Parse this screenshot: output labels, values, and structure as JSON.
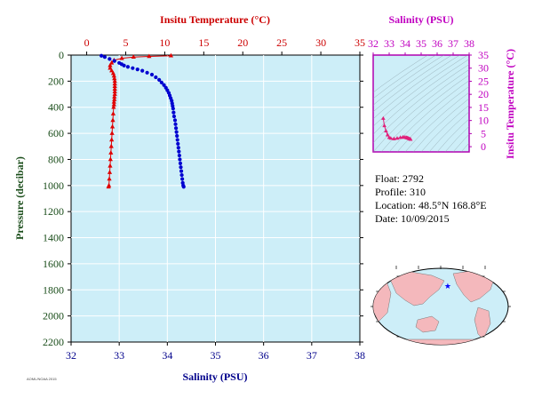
{
  "chart_data": [
    {
      "type": "scatter",
      "top_axis_label": "Insitu Temperature (°C)",
      "top_ticks": [
        0,
        5,
        10,
        15,
        20,
        25,
        30,
        35
      ],
      "top_range": [
        -2,
        35
      ],
      "bottom_axis_label": "Salinity (PSU)",
      "bottom_ticks": [
        32,
        33,
        34,
        35,
        36,
        37,
        38
      ],
      "bottom_range": [
        32,
        38
      ],
      "y_axis_label": "Pressure (decibar)",
      "y_ticks": [
        0,
        200,
        400,
        600,
        800,
        1000,
        1200,
        1400,
        1600,
        1800,
        2000,
        2200
      ],
      "y_range": [
        0,
        2200
      ],
      "y_inverted": true,
      "series": [
        {
          "axis": "temperature",
          "color": "#e00000",
          "marker": "triangle",
          "points": [
            [
              10.8,
              5
            ],
            [
              8,
              10
            ],
            [
              6,
              15
            ],
            [
              4.5,
              25
            ],
            [
              3.5,
              40
            ],
            [
              3.2,
              60
            ],
            [
              3.0,
              80
            ],
            [
              3.0,
              100
            ],
            [
              3.2,
              120
            ],
            [
              3.4,
              140
            ],
            [
              3.5,
              160
            ],
            [
              3.55,
              180
            ],
            [
              3.6,
              200
            ],
            [
              3.6,
              220
            ],
            [
              3.6,
              240
            ],
            [
              3.6,
              260
            ],
            [
              3.6,
              280
            ],
            [
              3.6,
              300
            ],
            [
              3.55,
              320
            ],
            [
              3.55,
              340
            ],
            [
              3.5,
              360
            ],
            [
              3.5,
              380
            ],
            [
              3.45,
              400
            ],
            [
              3.4,
              450
            ],
            [
              3.35,
              500
            ],
            [
              3.3,
              550
            ],
            [
              3.25,
              600
            ],
            [
              3.2,
              650
            ],
            [
              3.15,
              700
            ],
            [
              3.1,
              750
            ],
            [
              3.05,
              800
            ],
            [
              3.0,
              850
            ],
            [
              2.95,
              900
            ],
            [
              2.9,
              950
            ],
            [
              2.85,
              1000
            ],
            [
              2.8,
              1010
            ]
          ]
        },
        {
          "axis": "salinity",
          "color": "#0000d0",
          "marker": "circle",
          "points": [
            [
              32.63,
              5
            ],
            [
              32.7,
              15
            ],
            [
              32.8,
              30
            ],
            [
              32.9,
              45
            ],
            [
              33.0,
              60
            ],
            [
              33.05,
              70
            ],
            [
              33.1,
              80
            ],
            [
              33.18,
              90
            ],
            [
              33.28,
              100
            ],
            [
              33.38,
              110
            ],
            [
              33.48,
              120
            ],
            [
              33.58,
              135
            ],
            [
              33.68,
              150
            ],
            [
              33.76,
              170
            ],
            [
              33.83,
              190
            ],
            [
              33.88,
              210
            ],
            [
              33.93,
              230
            ],
            [
              33.97,
              250
            ],
            [
              34.0,
              270
            ],
            [
              34.03,
              290
            ],
            [
              34.05,
              310
            ],
            [
              34.07,
              330
            ],
            [
              34.09,
              350
            ],
            [
              34.1,
              370
            ],
            [
              34.11,
              390
            ],
            [
              34.12,
              410
            ],
            [
              34.13,
              440
            ],
            [
              34.14,
              470
            ],
            [
              34.16,
              500
            ],
            [
              34.17,
              530
            ],
            [
              34.18,
              560
            ],
            [
              34.19,
              590
            ],
            [
              34.2,
              620
            ],
            [
              34.21,
              650
            ],
            [
              34.22,
              680
            ],
            [
              34.23,
              710
            ],
            [
              34.24,
              740
            ],
            [
              34.25,
              770
            ],
            [
              34.26,
              800
            ],
            [
              34.27,
              830
            ],
            [
              34.28,
              860
            ],
            [
              34.29,
              890
            ],
            [
              34.3,
              920
            ],
            [
              34.31,
              950
            ],
            [
              34.32,
              980
            ],
            [
              34.33,
              1000
            ],
            [
              34.34,
              1010
            ]
          ]
        }
      ]
    },
    {
      "type": "scatter",
      "top_axis_label": "Salinity (PSU)",
      "top_ticks": [
        32,
        33,
        34,
        35,
        36,
        37,
        38
      ],
      "x_range": [
        32,
        38
      ],
      "y_axis_label": "Insitu Temperature (°C)",
      "y_ticks": [
        0,
        5,
        10,
        15,
        20,
        25,
        30,
        35
      ],
      "y_range": [
        -2,
        35
      ],
      "color": "#e0207a",
      "marker": "triangle",
      "points": [
        [
          32.63,
          10.8
        ],
        [
          32.7,
          8
        ],
        [
          32.8,
          6
        ],
        [
          32.9,
          4.5
        ],
        [
          33.0,
          3.5
        ],
        [
          33.1,
          3.2
        ],
        [
          33.3,
          3.0
        ],
        [
          33.5,
          3.2
        ],
        [
          33.7,
          3.5
        ],
        [
          33.85,
          3.6
        ],
        [
          33.95,
          3.6
        ],
        [
          34.05,
          3.5
        ],
        [
          34.1,
          3.4
        ],
        [
          34.15,
          3.3
        ],
        [
          34.2,
          3.2
        ],
        [
          34.25,
          3.0
        ],
        [
          34.3,
          2.9
        ],
        [
          34.34,
          2.8
        ]
      ]
    }
  ],
  "float_info": {
    "float": "Float:  2792",
    "profile": "Profile:  310",
    "location": "Location:  48.5°N  168.8°E",
    "date": "Date:  10/09/2015"
  },
  "map": {
    "marker_lat": 48.5,
    "marker_lon": 168.8,
    "marker_color": "#0000ff"
  },
  "footer_text": "AOML/NOAA 2015"
}
